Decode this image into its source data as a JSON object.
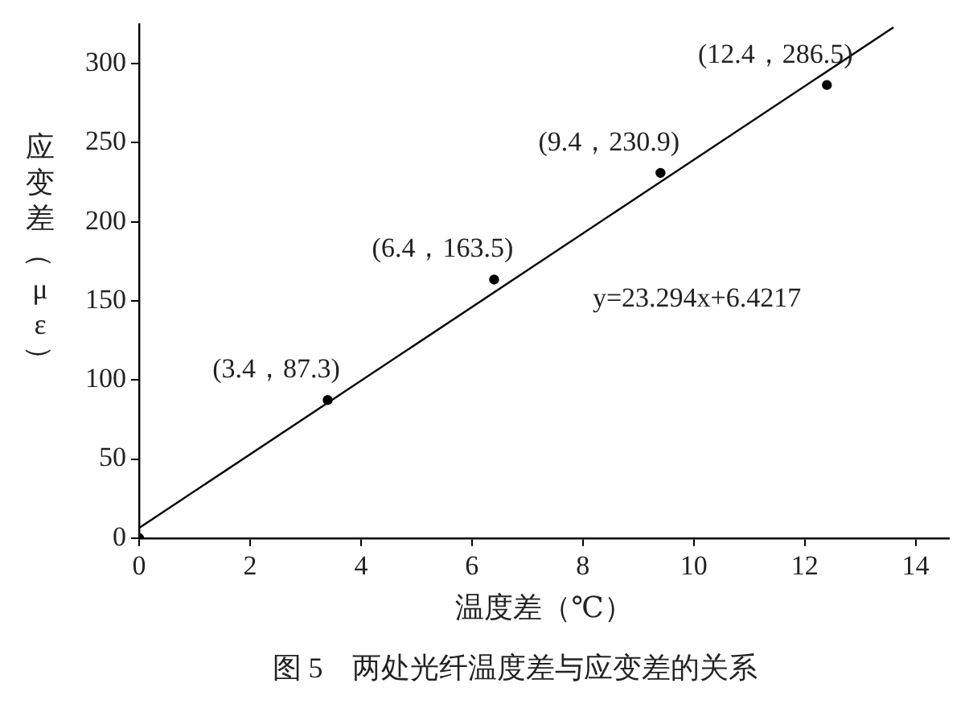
{
  "chart_data": {
    "type": "scatter",
    "title": "图 5　两处光纤温度差与应变差的关系",
    "xlabel": "温度差（℃）",
    "ylabel": "应变差（με）",
    "xlim": [
      0,
      14.6
    ],
    "ylim": [
      0,
      325
    ],
    "xticks": [
      0,
      2,
      4,
      6,
      8,
      10,
      12,
      14
    ],
    "yticks": [
      0,
      50,
      100,
      150,
      200,
      250,
      300
    ],
    "grid": false,
    "legend": false,
    "marker": "circle",
    "series": [
      {
        "color": "#000000",
        "x": [
          0,
          3.4,
          6.4,
          9.4,
          12.4
        ],
        "values": [
          0,
          87.3,
          163.5,
          230.9,
          286.5
        ]
      },
      {
        "type": "line",
        "color": "#000000",
        "x": [
          0,
          13.6
        ],
        "values": [
          6.4,
          323
        ],
        "marker": "none"
      }
    ],
    "annotations": [
      {
        "text": "(3.4，87.3)",
        "x": 3.4,
        "y": 87.3
      },
      {
        "text": "(6.4，163.5)",
        "x": 6.4,
        "y": 163.5
      },
      {
        "text": "(9.4，230.9)",
        "x": 9.4,
        "y": 230.9
      },
      {
        "text": "(12.4，286.5)",
        "x": 12.4,
        "y": 286.5
      },
      "y=23.294x+6.4217"
    ]
  }
}
